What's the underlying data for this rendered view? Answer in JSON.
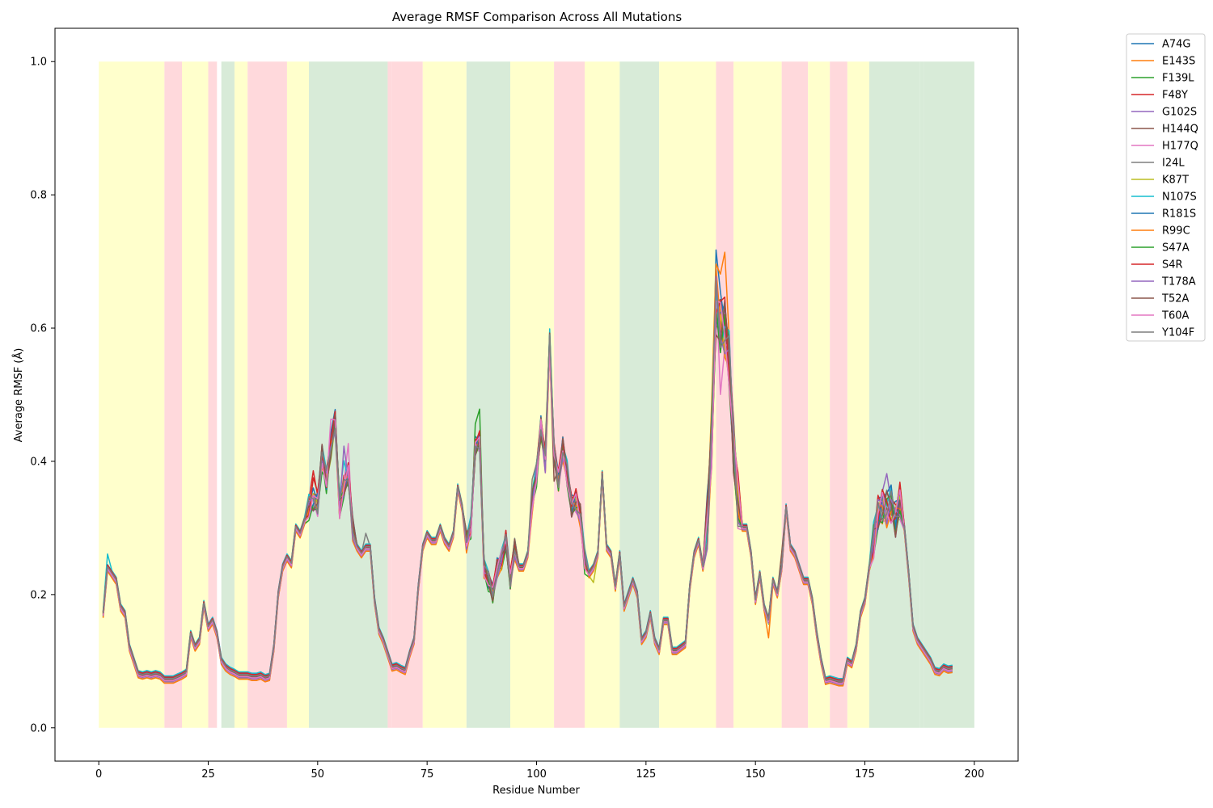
{
  "chart_data": {
    "type": "line",
    "title": "Average RMSF Comparison Across All Mutations",
    "xlabel": "Residue Number",
    "ylabel": "Average RMSF (Å)",
    "xlim": [
      -10,
      210
    ],
    "ylim": [
      -0.05,
      1.05
    ],
    "xticks": [
      0,
      25,
      50,
      75,
      100,
      125,
      150,
      175,
      200
    ],
    "yticks": [
      0.0,
      0.2,
      0.4,
      0.6,
      0.8,
      1.0
    ],
    "grid": false,
    "legend_position": "outside-right",
    "region_colors": {
      "helix": "#ffffcc",
      "strand": "#ffd9dc",
      "coil": "#d8ebd8"
    },
    "regions": [
      {
        "start": 0,
        "end": 15,
        "kind": "helix"
      },
      {
        "start": 15,
        "end": 19,
        "kind": "strand"
      },
      {
        "start": 19,
        "end": 25,
        "kind": "helix"
      },
      {
        "start": 25,
        "end": 27,
        "kind": "strand"
      },
      {
        "start": 28,
        "end": 31,
        "kind": "coil"
      },
      {
        "start": 31,
        "end": 34,
        "kind": "helix"
      },
      {
        "start": 34,
        "end": 43,
        "kind": "strand"
      },
      {
        "start": 43,
        "end": 48,
        "kind": "helix"
      },
      {
        "start": 48,
        "end": 66,
        "kind": "coil"
      },
      {
        "start": 66,
        "end": 67,
        "kind": "strand"
      },
      {
        "start": 67,
        "end": 74,
        "kind": "strand"
      },
      {
        "start": 74,
        "end": 84,
        "kind": "helix"
      },
      {
        "start": 84,
        "end": 94,
        "kind": "coil"
      },
      {
        "start": 94,
        "end": 104,
        "kind": "helix"
      },
      {
        "start": 104,
        "end": 111,
        "kind": "strand"
      },
      {
        "start": 111,
        "end": 119,
        "kind": "helix"
      },
      {
        "start": 119,
        "end": 128,
        "kind": "coil"
      },
      {
        "start": 128,
        "end": 141,
        "kind": "helix"
      },
      {
        "start": 141,
        "end": 145,
        "kind": "strand"
      },
      {
        "start": 145,
        "end": 156,
        "kind": "helix"
      },
      {
        "start": 156,
        "end": 162,
        "kind": "strand"
      },
      {
        "start": 162,
        "end": 167,
        "kind": "helix"
      },
      {
        "start": 167,
        "end": 171,
        "kind": "strand"
      },
      {
        "start": 171,
        "end": 176,
        "kind": "helix"
      },
      {
        "start": 176,
        "end": 187.5,
        "kind": "coil"
      },
      {
        "start": 187.5,
        "end": 188.5,
        "kind": "coil"
      },
      {
        "start": 188.5,
        "end": 200,
        "kind": "coil"
      }
    ],
    "region_ymax": 1.0,
    "baseline": {
      "x": [
        1,
        2,
        3,
        4,
        5,
        6,
        7,
        8,
        9,
        10,
        11,
        12,
        13,
        14,
        15,
        16,
        17,
        18,
        19,
        20,
        21,
        22,
        23,
        24,
        25,
        26,
        27,
        28,
        29,
        30,
        31,
        32,
        33,
        34,
        35,
        36,
        37,
        38,
        39,
        40,
        41,
        42,
        43,
        44,
        45,
        46,
        47,
        48,
        49,
        50,
        51,
        52,
        53,
        54,
        55,
        56,
        57,
        58,
        59,
        60,
        61,
        62,
        63,
        64,
        65,
        66,
        67,
        68,
        69,
        70,
        71,
        72,
        73,
        74,
        75,
        76,
        77,
        78,
        79,
        80,
        81,
        82,
        83,
        84,
        85,
        86,
        87,
        88,
        89,
        90,
        91,
        92,
        93,
        94,
        95,
        96,
        97,
        98,
        99,
        100,
        101,
        102,
        103,
        104,
        105,
        106,
        107,
        108,
        109,
        110,
        111,
        112,
        113,
        114,
        115,
        116,
        117,
        118,
        119,
        120,
        121,
        122,
        123,
        124,
        125,
        126,
        127,
        128,
        129,
        130,
        131,
        132,
        133,
        134,
        135,
        136,
        137,
        138,
        139,
        140,
        141,
        142,
        143,
        144,
        145,
        146,
        147,
        148,
        149,
        150,
        151,
        152,
        153,
        154,
        155,
        156,
        157,
        158,
        159,
        160,
        161,
        162,
        163,
        164,
        165,
        166,
        167,
        168,
        169,
        170,
        171,
        172,
        173,
        174,
        175,
        176,
        177,
        178,
        179,
        180,
        181,
        182,
        183,
        184,
        185,
        186,
        187,
        188,
        189,
        190,
        191,
        192,
        193,
        194,
        195
      ],
      "y": [
        0.17,
        0.24,
        0.23,
        0.22,
        0.18,
        0.17,
        0.12,
        0.1,
        0.08,
        0.078,
        0.08,
        0.078,
        0.08,
        0.078,
        0.072,
        0.072,
        0.072,
        0.075,
        0.078,
        0.082,
        0.14,
        0.12,
        0.13,
        0.185,
        0.15,
        0.16,
        0.14,
        0.1,
        0.09,
        0.085,
        0.082,
        0.078,
        0.078,
        0.078,
        0.076,
        0.076,
        0.078,
        0.074,
        0.076,
        0.12,
        0.2,
        0.24,
        0.255,
        0.245,
        0.3,
        0.29,
        0.31,
        0.33,
        0.34,
        0.335,
        0.41,
        0.37,
        0.42,
        0.46,
        0.33,
        0.36,
        0.38,
        0.3,
        0.27,
        0.26,
        0.27,
        0.27,
        0.19,
        0.145,
        0.13,
        0.11,
        0.09,
        0.092,
        0.088,
        0.085,
        0.11,
        0.13,
        0.21,
        0.27,
        0.29,
        0.28,
        0.28,
        0.3,
        0.28,
        0.27,
        0.29,
        0.36,
        0.33,
        0.28,
        0.3,
        0.42,
        0.43,
        0.24,
        0.22,
        0.2,
        0.24,
        0.25,
        0.28,
        0.22,
        0.27,
        0.24,
        0.24,
        0.26,
        0.34,
        0.38,
        0.45,
        0.4,
        0.58,
        0.41,
        0.37,
        0.42,
        0.38,
        0.33,
        0.34,
        0.32,
        0.25,
        0.23,
        0.24,
        0.26,
        0.38,
        0.27,
        0.26,
        0.21,
        0.26,
        0.18,
        0.2,
        0.22,
        0.2,
        0.13,
        0.14,
        0.17,
        0.13,
        0.115,
        0.16,
        0.16,
        0.115,
        0.115,
        0.12,
        0.125,
        0.21,
        0.26,
        0.28,
        0.24,
        0.31,
        0.43,
        0.64,
        0.6,
        0.6,
        0.55,
        0.42,
        0.34,
        0.3,
        0.3,
        0.26,
        0.19,
        0.23,
        0.18,
        0.16,
        0.22,
        0.2,
        0.24,
        0.33,
        0.27,
        0.26,
        0.24,
        0.22,
        0.22,
        0.19,
        0.14,
        0.1,
        0.07,
        0.072,
        0.07,
        0.068,
        0.068,
        0.1,
        0.095,
        0.12,
        0.17,
        0.19,
        0.24,
        0.28,
        0.32,
        0.33,
        0.33,
        0.33,
        0.31,
        0.34,
        0.3,
        0.23,
        0.15,
        0.13,
        0.12,
        0.11,
        0.1,
        0.085,
        0.083,
        0.09,
        0.087,
        0.088
      ]
    },
    "peak_spreads": [
      {
        "x": [
          139,
          146
        ],
        "spread": 0.08
      },
      {
        "x": [
          177,
          183
        ],
        "spread": 0.05
      },
      {
        "x": [
          99,
          111
        ],
        "spread": 0.03
      },
      {
        "x": [
          48,
          58
        ],
        "spread": 0.03
      },
      {
        "x": [
          84,
          95
        ],
        "spread": 0.025
      }
    ],
    "series": [
      {
        "name": "A74G",
        "color": "#1f77b4",
        "offset": 0.005,
        "peak_adjust": {
          "141": 0.04,
          "142": 0.03,
          "143": 0.04
        }
      },
      {
        "name": "E143S",
        "color": "#ff7f0e",
        "offset": 0.0,
        "peak_adjust": {
          "140": 0.02,
          "141": 0.06,
          "142": 0.12,
          "143": 0.1
        }
      },
      {
        "name": "F139L",
        "color": "#2ca02c",
        "offset": -0.004,
        "peak_adjust": {
          "86": 0.04,
          "87": 0.04,
          "181": 0.02
        }
      },
      {
        "name": "F48Y",
        "color": "#d62728",
        "offset": 0.004,
        "peak_adjust": {
          "49": 0.03,
          "50": 0.02,
          "141": -0.05
        }
      },
      {
        "name": "G102S",
        "color": "#9467bd",
        "offset": 0.0,
        "peak_adjust": {
          "179": 0.04,
          "180": 0.03
        }
      },
      {
        "name": "H144Q",
        "color": "#8c564b",
        "offset": 0.003,
        "peak_adjust": {
          "104": -0.04,
          "156": 0.02
        }
      },
      {
        "name": "H177Q",
        "color": "#e377c2",
        "offset": -0.003,
        "peak_adjust": {
          "54": 0.03,
          "57": 0.06,
          "142": -0.07
        }
      },
      {
        "name": "I24L",
        "color": "#7f7f7f",
        "offset": 0.002,
        "peak_adjust": {
          "61": 0.02,
          "102": 0.01
        }
      },
      {
        "name": "K87T",
        "color": "#bcbd22",
        "offset": -0.002,
        "peak_adjust": {
          "53": -0.03,
          "113": -0.02
        }
      },
      {
        "name": "N107S",
        "color": "#17becf",
        "offset": 0.006,
        "peak_adjust": {
          "2": 0.015,
          "56": 0.03
        }
      },
      {
        "name": "R181S",
        "color": "#1f77b4",
        "offset": 0.003,
        "peak_adjust": {
          "181": 0.05,
          "53": 0.02
        }
      },
      {
        "name": "R99C",
        "color": "#ff7f0e",
        "offset": -0.005,
        "peak_adjust": {
          "141": 0.02,
          "153": -0.02
        }
      },
      {
        "name": "S47A",
        "color": "#2ca02c",
        "offset": 0.0,
        "peak_adjust": {
          "103": -0.02,
          "51": -0.04
        }
      },
      {
        "name": "S4R",
        "color": "#d62728",
        "offset": 0.004,
        "peak_adjust": {
          "49": 0.03,
          "143": 0.03
        }
      },
      {
        "name": "T178A",
        "color": "#9467bd",
        "offset": -0.002,
        "peak_adjust": {
          "179": 0.02,
          "56": 0.05
        }
      },
      {
        "name": "T52A",
        "color": "#8c564b",
        "offset": 0.001,
        "peak_adjust": {
          "141": -0.02
        }
      },
      {
        "name": "T60A",
        "color": "#e377c2",
        "offset": -0.001,
        "peak_adjust": {
          "53": 0.03,
          "92": 0.03
        }
      },
      {
        "name": "Y104F",
        "color": "#7f7f7f",
        "offset": 0.002,
        "peak_adjust": {
          "102": 0.02,
          "99": 0.03
        }
      }
    ]
  }
}
